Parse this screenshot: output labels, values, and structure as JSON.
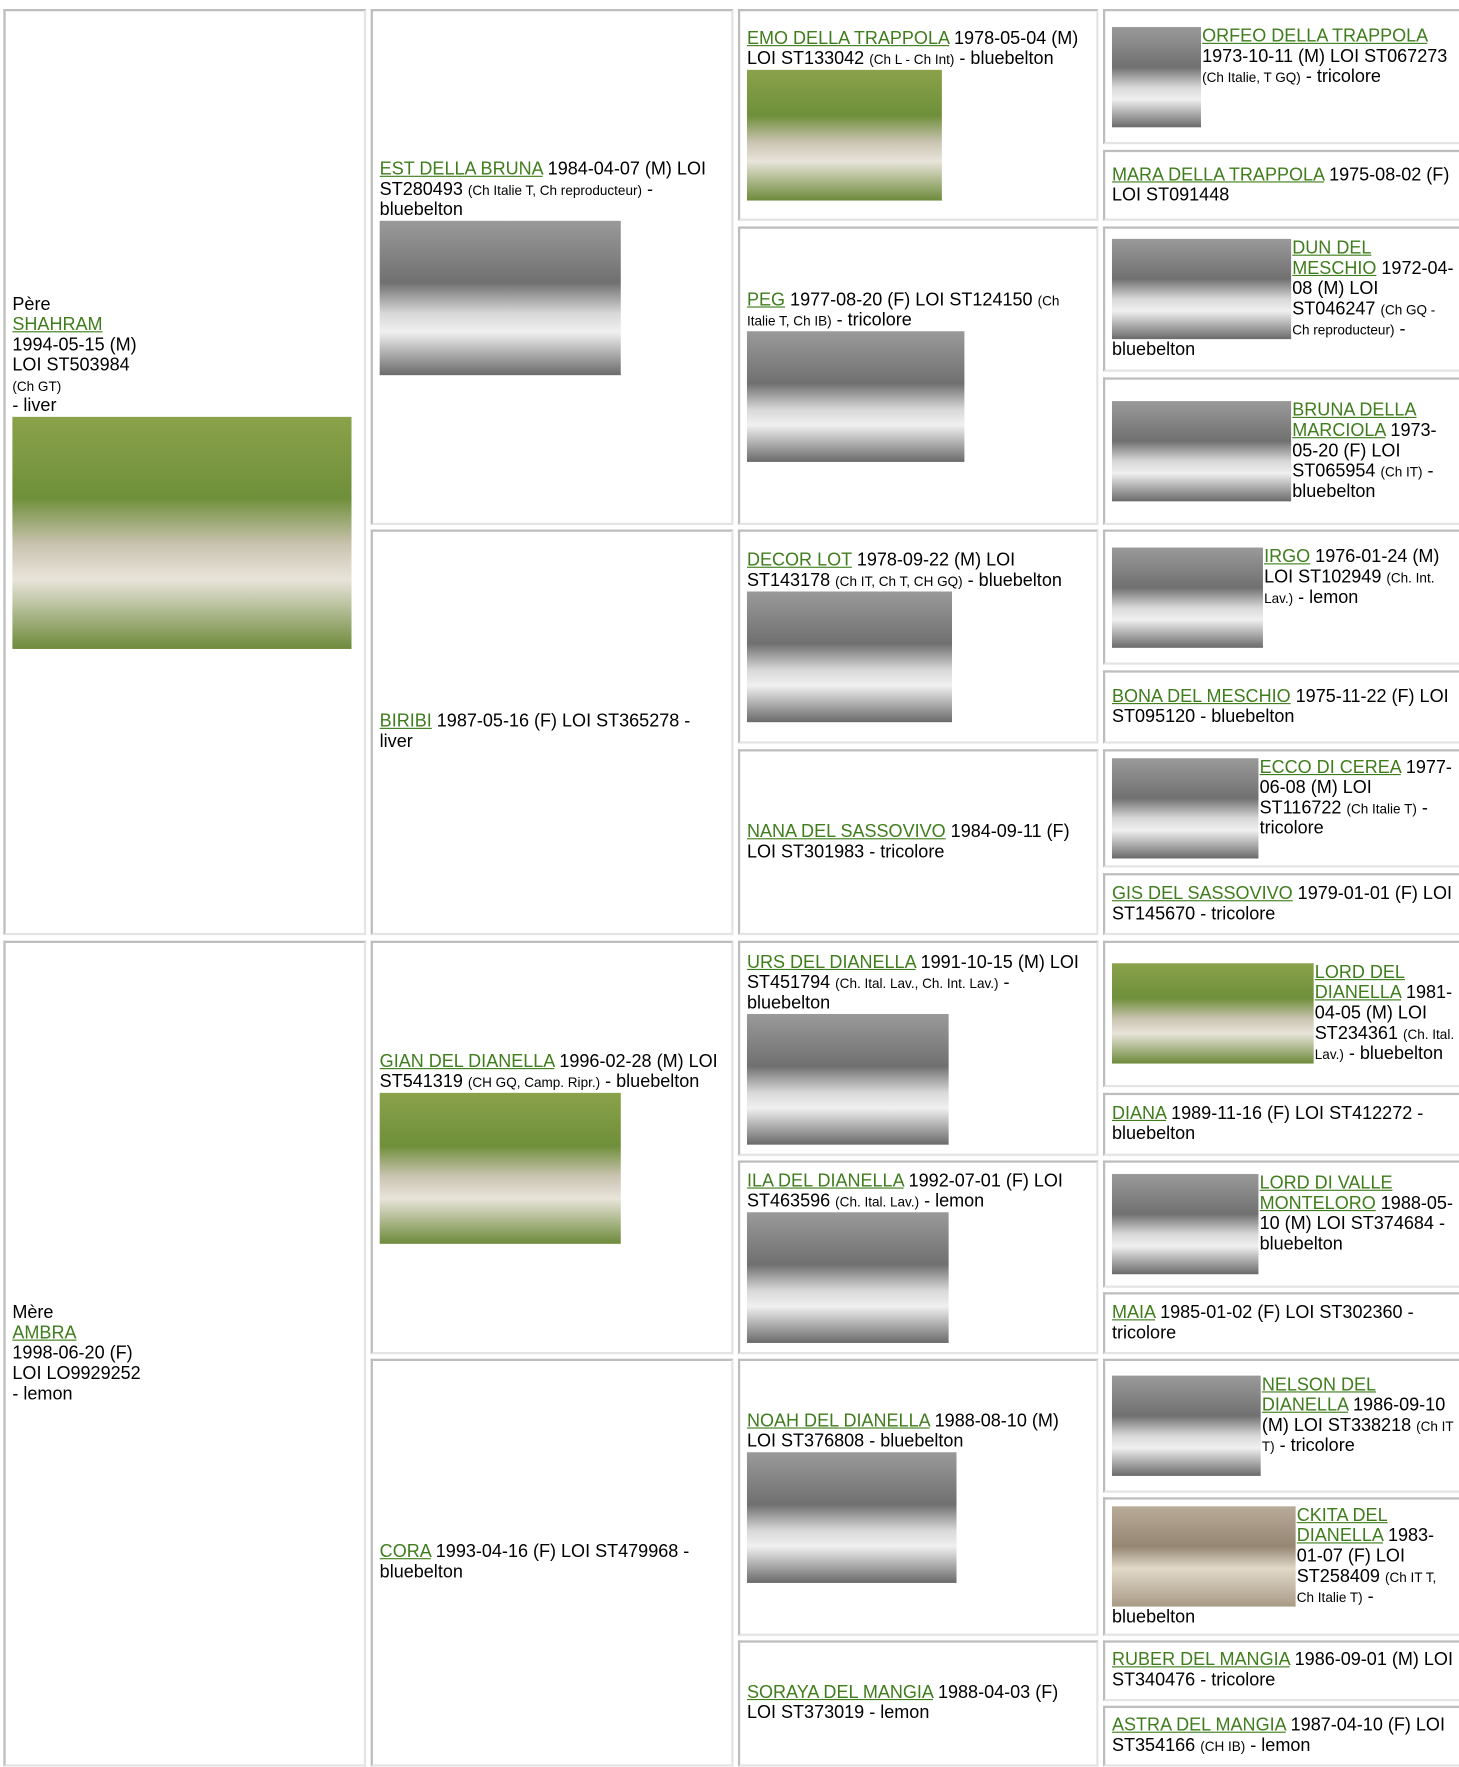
{
  "sire": {
    "role": "Père",
    "name": "SHAHRAM",
    "date": "1994-05-15 (M)",
    "reg": "LOI ST503984",
    "titles": "(Ch GT)",
    "coat": "- liver"
  },
  "dam": {
    "role": "Mère",
    "name": "AMBRA",
    "date": "1998-06-20 (F)",
    "reg": "LOI LO9929252",
    "coat": "- lemon"
  },
  "generation2": [
    {
      "name": "EST DELLA BRUNA",
      "details": "1984-04-07 (M) LOI ST280493",
      "titles": "(Ch Italie T, Ch reproducteur)",
      "coat": "- bluebelton"
    },
    {
      "name": "BIRIBI",
      "details": "1987-05-16 (F) LOI ST365278",
      "coat": "- liver"
    },
    {
      "name": "GIAN DEL DIANELLA",
      "details": "1996-02-28 (M) LOI ST541319",
      "titles": "(CH GQ, Camp. Ripr.)",
      "coat": "- bluebelton"
    },
    {
      "name": "CORA",
      "details": "1993-04-16 (F) LOI ST479968",
      "coat": "- bluebelton"
    }
  ],
  "generation3": [
    {
      "name": "EMO DELLA TRAPPOLA",
      "details": "1978-05-04 (M) LOI ST133042",
      "titles": "(Ch L - Ch Int)",
      "coat": "- bluebelton"
    },
    {
      "name": "PEG",
      "details": "1977-08-20 (F) LOI ST124150",
      "titles": "(Ch Italie T, Ch IB)",
      "coat": "- tricolore"
    },
    {
      "name": "DECOR LOT",
      "details": "1978-09-22 (M) LOI ST143178",
      "titles": "(Ch IT, Ch T, CH GQ)",
      "coat": "- bluebelton"
    },
    {
      "name": "NANA DEL SASSOVIVO",
      "details": "1984-09-11 (F) LOI ST301983",
      "coat": "- tricolore"
    },
    {
      "name": "URS DEL DIANELLA",
      "details": "1991-10-15 (M) LOI ST451794",
      "titles": "(Ch. Ital. Lav., Ch. Int. Lav.)",
      "coat": "- bluebelton"
    },
    {
      "name": "ILA DEL DIANELLA",
      "details": "1992-07-01 (F) LOI ST463596",
      "titles": "(Ch. Ital. Lav.)",
      "coat": "- lemon"
    },
    {
      "name": "NOAH DEL DIANELLA",
      "details": "1988-08-10 (M) LOI ST376808",
      "coat": "- bluebelton"
    },
    {
      "name": "SORAYA DEL MANGIA",
      "details": "1988-04-03 (F) LOI ST373019",
      "coat": "- lemon"
    }
  ],
  "generation4": [
    {
      "name": "ORFEO DELLA TRAPPOLA",
      "details": "1973-10-11 (M) LOI ST067273",
      "titles": "(Ch Italie, T GQ)",
      "coat": "- tricolore"
    },
    {
      "name": "MARA DELLA TRAPPOLA",
      "details": "1975-08-02 (F) LOI ST091448"
    },
    {
      "name": "DUN DEL MESCHIO",
      "details": "1972-04-08 (M) LOI ST046247",
      "titles": "(Ch GQ - Ch reproducteur)",
      "coat": "- bluebelton"
    },
    {
      "name": "BRUNA DELLA MARCIOLA",
      "details": "1973-05-20 (F) LOI ST065954",
      "titles": "(Ch IT)",
      "coat": "- bluebelton"
    },
    {
      "name": "IRGO",
      "details": "1976-01-24 (M) LOI ST102949",
      "titles": "(Ch. Int. Lav.)",
      "coat": "- lemon"
    },
    {
      "name": "BONA DEL MESCHIO",
      "details": "1975-11-22 (F) LOI ST095120",
      "coat": "- bluebelton"
    },
    {
      "name": "ECCO DI CEREA",
      "details": "1977-06-08 (M) LOI ST116722",
      "titles": "(Ch Italie T)",
      "coat": "- tricolore"
    },
    {
      "name": "GIS DEL SASSOVIVO",
      "details": "1979-01-01 (F) LOI ST145670",
      "coat": "- tricolore"
    },
    {
      "name": "LORD DEL DIANELLA",
      "details": "1981-04-05 (M) LOI ST234361",
      "titles": "(Ch. Ital. Lav.)",
      "coat": "- bluebelton"
    },
    {
      "name": "DIANA",
      "details": "1989-11-16 (F) LOI ST412272",
      "coat": "- bluebelton"
    },
    {
      "name": "LORD DI VALLE MONTELORO",
      "details": "1988-05-10 (M) LOI ST374684",
      "coat": "- bluebelton"
    },
    {
      "name": "MAIA",
      "details": "1985-01-02 (F) LOI ST302360",
      "coat": "- tricolore"
    },
    {
      "name": "NELSON DEL DIANELLA",
      "details": "1986-09-10 (M) LOI ST338218",
      "titles": "(Ch IT T)",
      "coat": "- tricolore"
    },
    {
      "name": "CKITA DEL DIANELLA",
      "details": "1983-01-07 (F) LOI ST258409",
      "titles": "(Ch IT T, Ch Italie T)",
      "coat": "- bluebelton"
    },
    {
      "name": "RUBER DEL MANGIA",
      "details": "1986-09-01 (M) LOI ST340476",
      "coat": "- tricolore"
    },
    {
      "name": "ASTRA DEL MANGIA",
      "details": "1987-04-10 (F) LOI ST354166",
      "titles": "(CH IB)",
      "coat": "- lemon"
    }
  ]
}
